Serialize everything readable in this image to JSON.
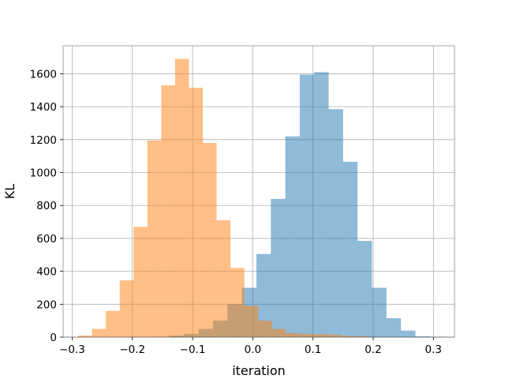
{
  "chart_data": {
    "type": "bar",
    "title": "",
    "xlabel": "iteration",
    "ylabel": "KL",
    "xlim": [
      -0.315,
      0.335
    ],
    "ylim": [
      0,
      1770
    ],
    "xticks": [
      -0.3,
      -0.2,
      -0.1,
      0.0,
      0.1,
      0.2,
      0.3
    ],
    "xtick_labels": [
      "−0.3",
      "−0.2",
      "−0.1",
      "0.0",
      "0.1",
      "0.2",
      "0.3"
    ],
    "yticks": [
      0,
      200,
      400,
      600,
      800,
      1000,
      1200,
      1400,
      1600
    ],
    "ytick_labels": [
      "0",
      "200",
      "400",
      "600",
      "800",
      "1000",
      "1200",
      "1400",
      "1600"
    ],
    "grid": true,
    "series": [
      {
        "color": "#1f77b4",
        "alpha": 0.5,
        "bins": [
          [
            -0.163,
            -0.139,
            2
          ],
          [
            -0.139,
            -0.115,
            10
          ],
          [
            -0.115,
            -0.09,
            20
          ],
          [
            -0.09,
            -0.066,
            50
          ],
          [
            -0.066,
            -0.042,
            100
          ],
          [
            -0.042,
            -0.018,
            200
          ],
          [
            -0.018,
            0.006,
            300
          ],
          [
            0.006,
            0.03,
            505
          ],
          [
            0.03,
            0.054,
            840
          ],
          [
            0.054,
            0.078,
            1220
          ],
          [
            0.078,
            0.102,
            1595
          ],
          [
            0.102,
            0.126,
            1610
          ],
          [
            0.126,
            0.15,
            1385
          ],
          [
            0.15,
            0.174,
            1065
          ],
          [
            0.174,
            0.198,
            585
          ],
          [
            0.198,
            0.222,
            300
          ],
          [
            0.222,
            0.246,
            115
          ],
          [
            0.246,
            0.27,
            40
          ],
          [
            0.27,
            0.294,
            5
          ],
          [
            0.294,
            0.318,
            2
          ]
        ]
      },
      {
        "color": "#ff7f0e",
        "alpha": 0.5,
        "bins": [
          [
            -0.29,
            -0.267,
            10
          ],
          [
            -0.267,
            -0.244,
            50
          ],
          [
            -0.244,
            -0.221,
            160
          ],
          [
            -0.221,
            -0.198,
            345
          ],
          [
            -0.198,
            -0.175,
            670
          ],
          [
            -0.175,
            -0.152,
            1195
          ],
          [
            -0.152,
            -0.129,
            1530
          ],
          [
            -0.129,
            -0.106,
            1690
          ],
          [
            -0.106,
            -0.083,
            1515
          ],
          [
            -0.083,
            -0.06,
            1180
          ],
          [
            -0.06,
            -0.037,
            710
          ],
          [
            -0.037,
            -0.014,
            420
          ],
          [
            -0.014,
            0.009,
            190
          ],
          [
            0.009,
            0.032,
            100
          ],
          [
            0.032,
            0.055,
            50
          ],
          [
            0.055,
            0.078,
            25
          ],
          [
            0.078,
            0.101,
            20
          ],
          [
            0.101,
            0.124,
            18
          ],
          [
            0.124,
            0.147,
            15
          ],
          [
            0.147,
            0.17,
            8
          ],
          [
            0.17,
            0.193,
            5
          ]
        ]
      }
    ]
  }
}
